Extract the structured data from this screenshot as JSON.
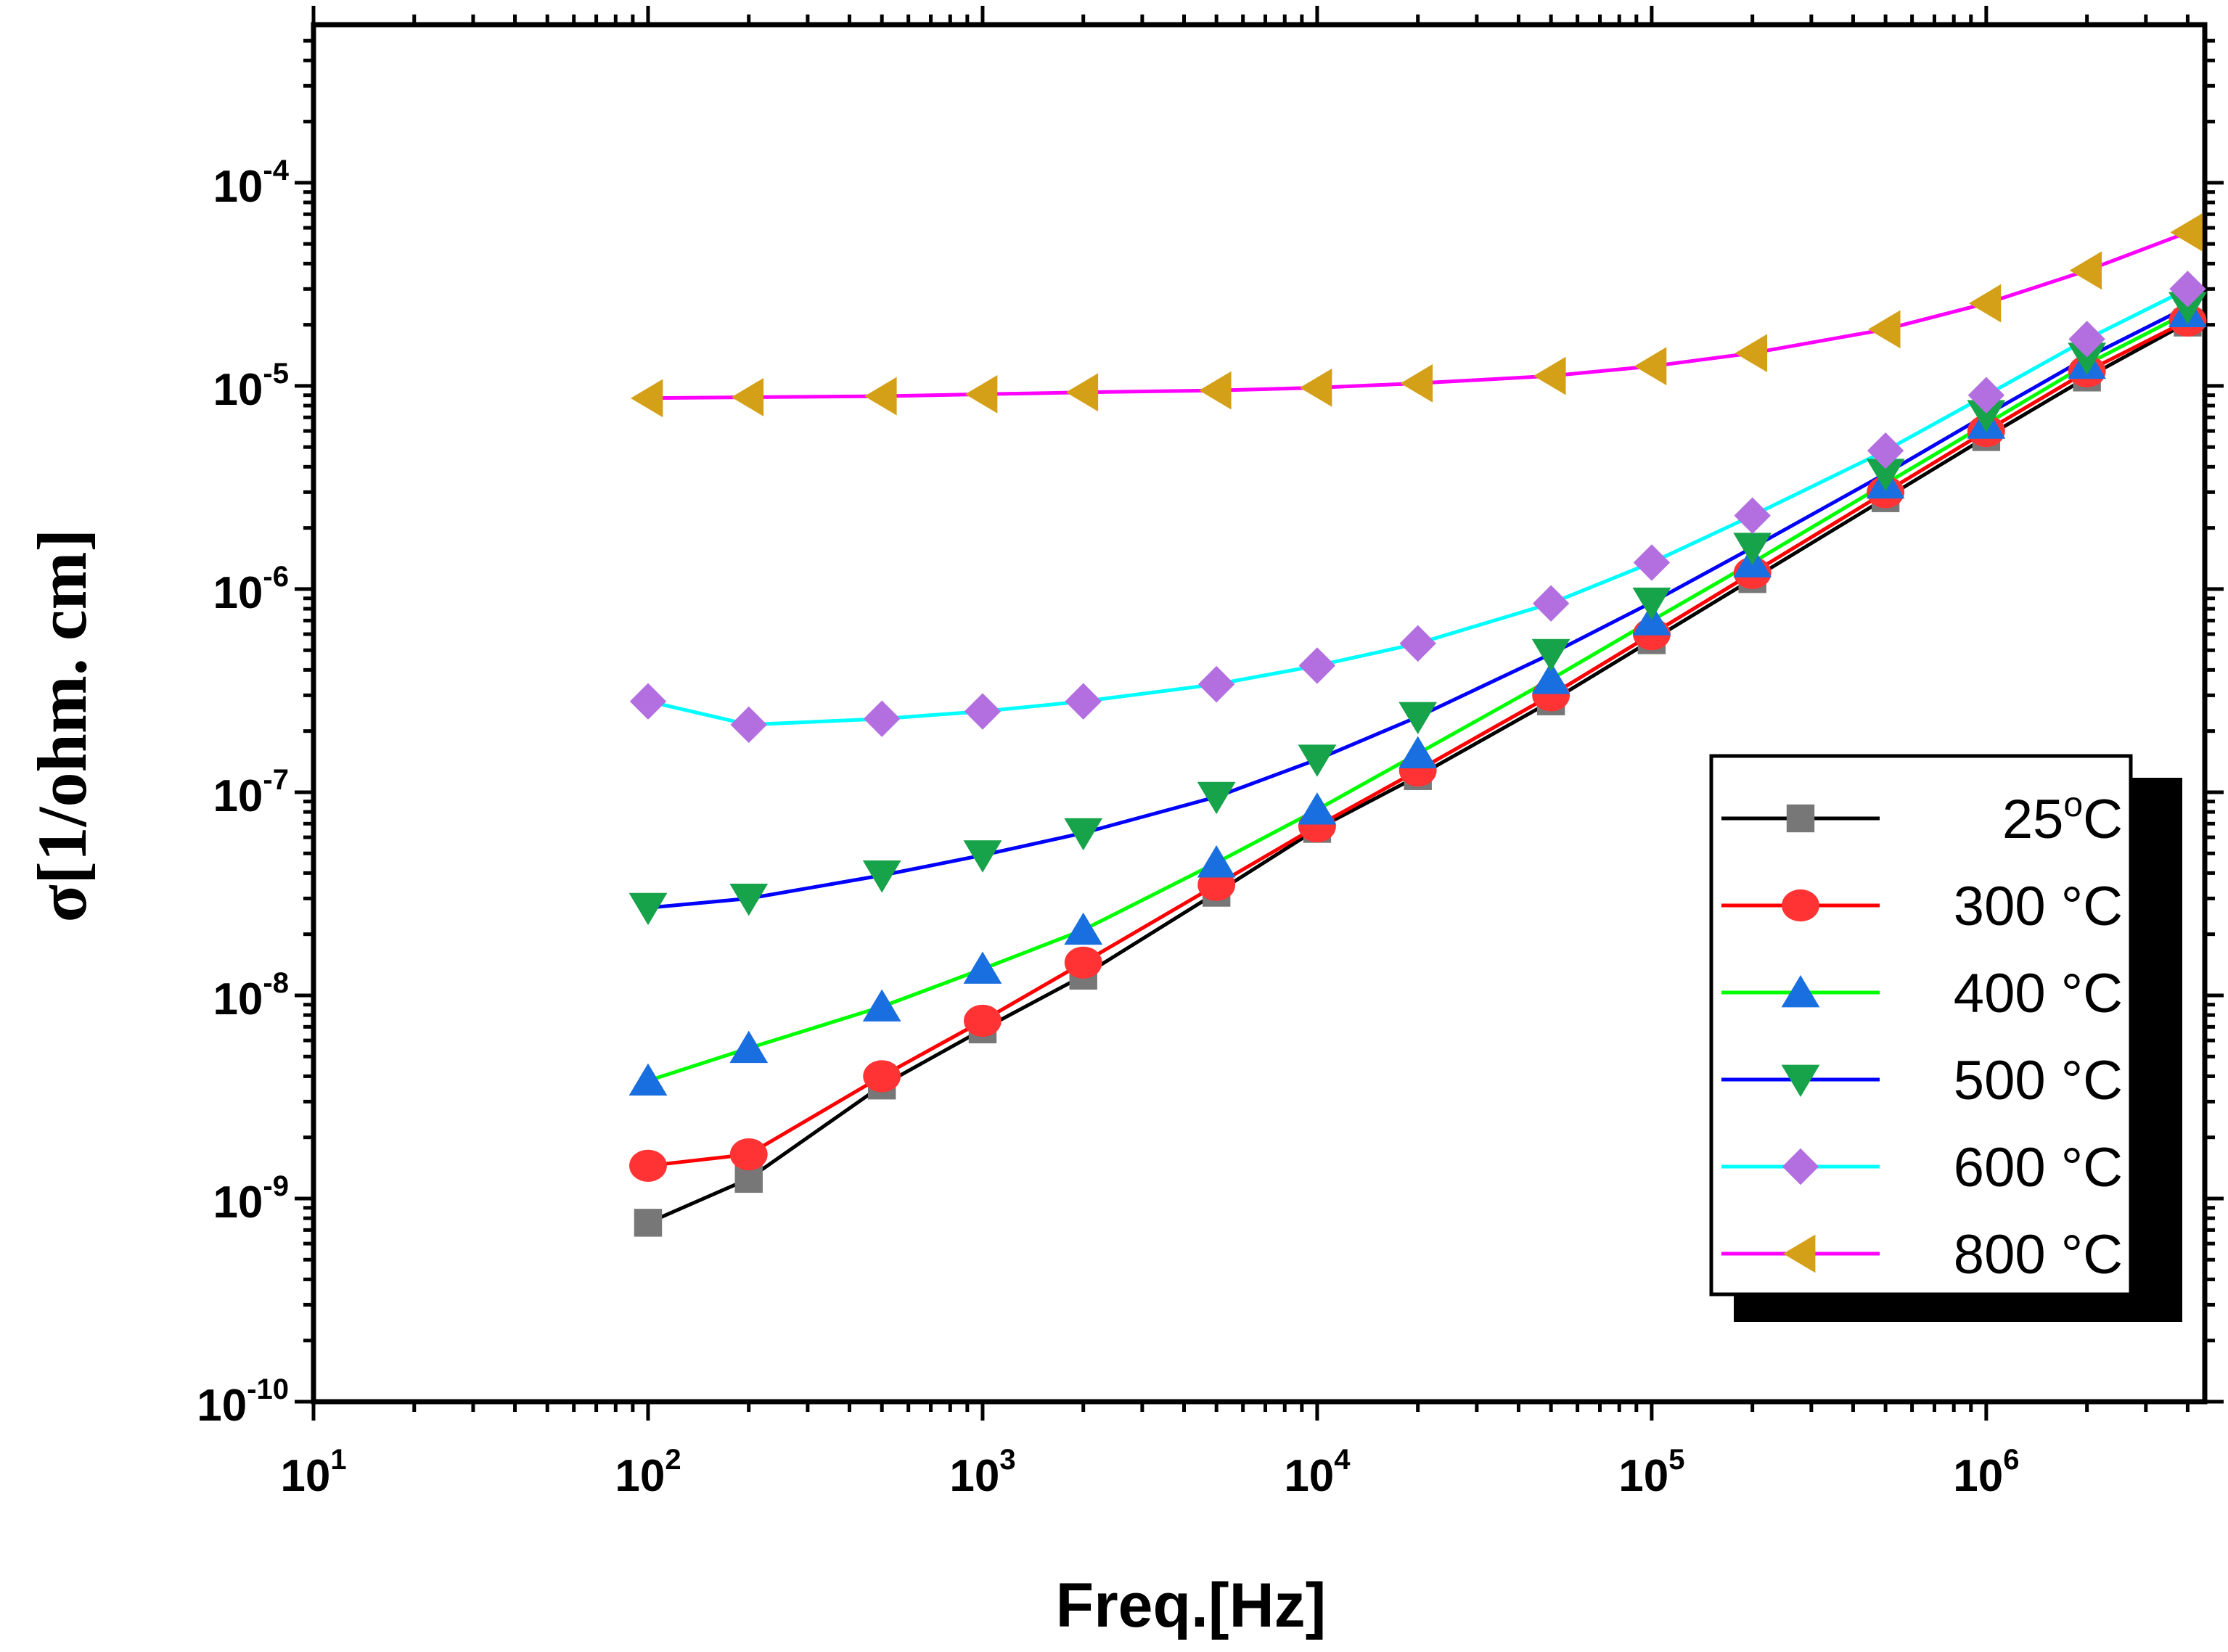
{
  "chart_data": {
    "type": "line",
    "title": "",
    "xlabel": "Freq.[Hz]",
    "ylabel": "σ[1/ohm. cm]",
    "xscale": "log",
    "yscale": "log",
    "xlim": [
      10,
      4500000
    ],
    "ylim": [
      1e-10,
      0.0006
    ],
    "x_ticks": [
      {
        "base": "10",
        "exp": "1"
      },
      {
        "base": "10",
        "exp": "2"
      },
      {
        "base": "10",
        "exp": "3"
      },
      {
        "base": "10",
        "exp": "4"
      },
      {
        "base": "10",
        "exp": "5"
      },
      {
        "base": "10",
        "exp": "6"
      }
    ],
    "y_ticks": [
      {
        "base": "10",
        "exp": "-10"
      },
      {
        "base": "10",
        "exp": "-9"
      },
      {
        "base": "10",
        "exp": "-8"
      },
      {
        "base": "10",
        "exp": "-7"
      },
      {
        "base": "10",
        "exp": "-6"
      },
      {
        "base": "10",
        "exp": "-5"
      },
      {
        "base": "10",
        "exp": "-4"
      }
    ],
    "legend_position": "bottom-right",
    "x": [
      100,
      200,
      500,
      1000,
      2000,
      5000,
      10000,
      20000,
      50000,
      100000,
      200000,
      500000,
      1000000,
      2000000,
      4000000
    ],
    "series": [
      {
        "name": "25",
        "name_sup": "o",
        "name_suffix": "C",
        "line_color": "#000000",
        "marker": "square",
        "marker_color": "#777777",
        "values": [
          7.6e-10,
          1.25e-09,
          3.6e-09,
          6.8e-09,
          1.25e-08,
          3.2e-08,
          6.6e-08,
          1.2e-07,
          2.8e-07,
          5.6e-07,
          1.12e-06,
          2.8e-06,
          5.6e-06,
          1.1e-05,
          2.05e-05
        ]
      },
      {
        "name": "300 °C",
        "line_color": "#ff0000",
        "marker": "circle",
        "marker_color": "#ff3333",
        "values": [
          1.45e-09,
          1.65e-09,
          4e-09,
          7.5e-09,
          1.45e-08,
          3.5e-08,
          6.8e-08,
          1.28e-07,
          3e-07,
          6e-07,
          1.2e-06,
          3e-06,
          6e-06,
          1.18e-05,
          2.1e-05
        ]
      },
      {
        "name": "400 °C",
        "line_color": "#00ff00",
        "marker": "triangle-up",
        "marker_color": "#1a6fe0",
        "values": [
          3.8e-09,
          5.5e-09,
          8.8e-09,
          1.35e-08,
          2.1e-08,
          4.5e-08,
          8.2e-08,
          1.55e-07,
          3.6e-07,
          7e-07,
          1.35e-06,
          3.3e-06,
          6.5e-06,
          1.28e-05,
          2.3e-05
        ]
      },
      {
        "name": "500 °C",
        "line_color": "#0000ff",
        "marker": "triangle-down",
        "marker_color": "#16a34a",
        "values": [
          2.7e-08,
          3e-08,
          3.9e-08,
          4.9e-08,
          6.3e-08,
          9.5e-08,
          1.45e-07,
          2.35e-07,
          4.8e-07,
          8.6e-07,
          1.6e-06,
          3.7e-06,
          7.2e-06,
          1.38e-05,
          2.45e-05
        ]
      },
      {
        "name": "600 °C",
        "line_color": "#00ffff",
        "marker": "diamond",
        "marker_color": "#b36fe0",
        "values": [
          2.8e-07,
          2.15e-07,
          2.3e-07,
          2.5e-07,
          2.8e-07,
          3.4e-07,
          4.2e-07,
          5.4e-07,
          8.5e-07,
          1.35e-06,
          2.3e-06,
          4.8e-06,
          9e-06,
          1.7e-05,
          3e-05
        ]
      },
      {
        "name": "800 °C",
        "line_color": "#ff00ff",
        "marker": "triangle-left",
        "marker_color": "#d4a017",
        "values": [
          8.7e-06,
          8.8e-06,
          8.9e-06,
          9.1e-06,
          9.3e-06,
          9.5e-06,
          9.8e-06,
          1.03e-05,
          1.12e-05,
          1.25e-05,
          1.45e-05,
          1.9e-05,
          2.55e-05,
          3.7e-05,
          5.7e-05
        ]
      }
    ]
  }
}
